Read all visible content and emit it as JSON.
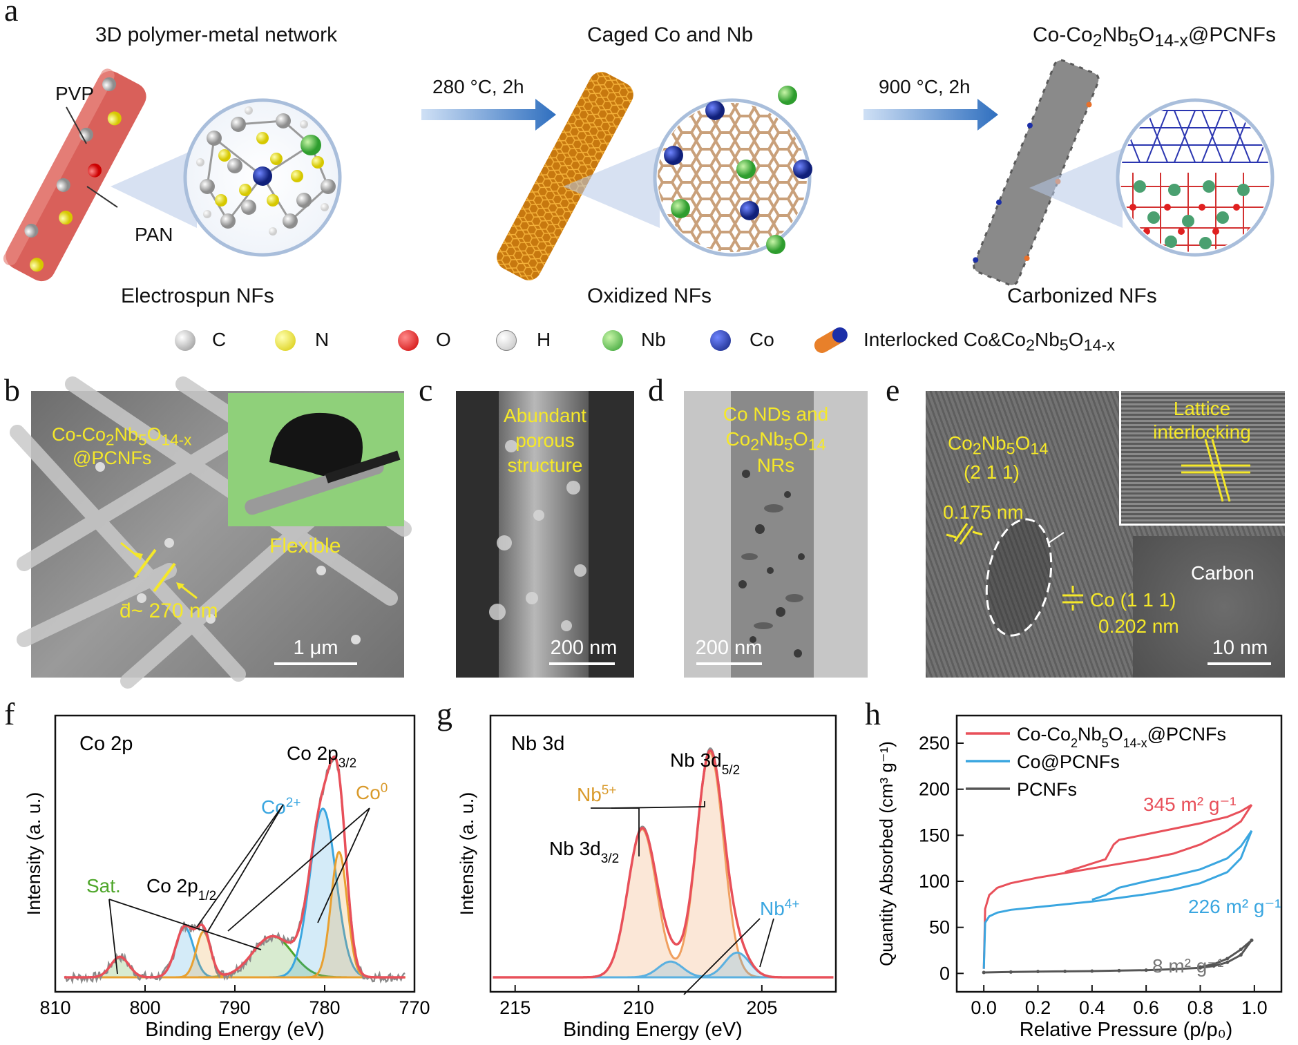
{
  "panel_labels": {
    "a": "a",
    "b": "b",
    "c": "c",
    "d": "d",
    "e": "e",
    "f": "f",
    "g": "g",
    "h": "h"
  },
  "panel_a": {
    "titles": [
      "3D polymer-metal network",
      "Caged Co and Nb",
      "Co-Co₂Nb₅O₁₄₋ₓ@PCNFs"
    ],
    "pvp": "PVP",
    "pan": "PAN",
    "step1": "280 °C, 2h",
    "step2": "900 °C, 2h",
    "captions": [
      "Electrospun NFs",
      "Oxidized NFs",
      "Carbonized NFs"
    ],
    "legend": [
      {
        "symbol": "C",
        "color": "#bdbdbd"
      },
      {
        "symbol": "N",
        "color": "#f2e600"
      },
      {
        "symbol": "O",
        "color": "#e31a1a"
      },
      {
        "symbol": "H",
        "color": "#f4f4f4"
      },
      {
        "symbol": "Nb",
        "color": "#3fbf3f"
      },
      {
        "symbol": "Co",
        "color": "#1c2fa8"
      }
    ],
    "legend_interlock": "Interlocked Co&Co₂Nb₅O₁₄₋ₓ"
  },
  "panel_b": {
    "label_line1": "Co-Co₂Nb₅O₁₄₋ₓ",
    "label_line2": "@PCNFs",
    "flexible": "Flexible",
    "diameter": "d̄~ 270 nm",
    "scale": "1 μm"
  },
  "panel_c": {
    "text": [
      "Abundant",
      "porous",
      "structure"
    ],
    "scale": "200 nm"
  },
  "panel_d": {
    "text": [
      "Co NDs and",
      "Co₂Nb₅O₁₄",
      "NRs"
    ],
    "scale": "200 nm"
  },
  "panel_e": {
    "phase": "Co₂Nb₅O₁₄",
    "plane": "(2 1 1)",
    "d1": "0.175 nm",
    "inset": [
      "Lattice",
      "interlocking"
    ],
    "carbon": "Carbon",
    "co_plane": "Co (1 1 1)",
    "d2": "0.202 nm",
    "scale": "10 nm"
  },
  "chart_data": [
    {
      "panel": "f",
      "type": "line",
      "title": "Co 2p",
      "xlabel": "Binding Energy (eV)",
      "ylabel": "Intensity (a. u.)",
      "xlim": [
        810,
        770
      ],
      "xticks": [
        810,
        800,
        790,
        780,
        770
      ],
      "annotations": [
        "Co 2p₃/₂",
        "Co²⁺",
        "Co⁰",
        "Sat.",
        "Co 2p₁/₂"
      ],
      "peaks": [
        {
          "name": "Co²⁺",
          "center": [
            780.2,
            795.6
          ]
        },
        {
          "name": "Co⁰",
          "center": [
            778.4,
            793.5
          ]
        },
        {
          "name": "Sat.",
          "center": [
            785.8,
            802.8
          ]
        }
      ],
      "series_colors": {
        "raw": "#8a8a8a",
        "envelope": "#e8505a",
        "co2": "#3aa6e0",
        "co0": "#e8a030",
        "sat": "#4ea62a"
      }
    },
    {
      "panel": "g",
      "type": "line",
      "title": "Nb 3d",
      "xlabel": "Binding Energy (eV)",
      "ylabel": "Intensity (a. u.)",
      "xlim": [
        216,
        202
      ],
      "xticks": [
        215,
        210,
        205
      ],
      "annotations": [
        "Nb 3d₅/₂",
        "Nb⁵⁺",
        "Nb 3d₃/₂",
        "Nb⁴⁺"
      ],
      "peaks": [
        {
          "name": "Nb⁵⁺",
          "center": [
            207.1,
            209.8
          ]
        },
        {
          "name": "Nb⁴⁺",
          "center": [
            206.0,
            208.7
          ]
        }
      ],
      "series_colors": {
        "raw": "#8a8a8a",
        "envelope": "#e8505a",
        "nb5": "#f0a060",
        "nb4": "#5ab0e0"
      }
    },
    {
      "panel": "h",
      "type": "line",
      "xlabel": "Relative Pressure (p/p₀)",
      "ylabel": "Quantity Absorbed (cm³ g⁻¹)",
      "xlim": [
        -0.1,
        1.1
      ],
      "ylim": [
        -20,
        280
      ],
      "xticks": [
        0.0,
        0.2,
        0.4,
        0.6,
        0.8,
        1.0
      ],
      "xtick_labels": [
        "0.0",
        "0.2",
        "0.4",
        "0.6",
        "0.8",
        "1.0"
      ],
      "yticks": [
        0,
        50,
        100,
        150,
        200,
        250
      ],
      "series": [
        {
          "name": "Co-Co₂Nb₅O₁₄₋ₓ@PCNFs",
          "color": "#e8505a",
          "area": "345 m² g⁻¹",
          "adsorption": [
            [
              0.0,
              5
            ],
            [
              0.005,
              70
            ],
            [
              0.02,
              85
            ],
            [
              0.05,
              93
            ],
            [
              0.1,
              98
            ],
            [
              0.2,
              104
            ],
            [
              0.3,
              109
            ],
            [
              0.4,
              114
            ],
            [
              0.5,
              119
            ],
            [
              0.6,
              124
            ],
            [
              0.7,
              130
            ],
            [
              0.8,
              140
            ],
            [
              0.9,
              155
            ],
            [
              0.95,
              165
            ],
            [
              0.99,
              183
            ]
          ],
          "desorption": [
            [
              0.99,
              183
            ],
            [
              0.95,
              176
            ],
            [
              0.9,
              170
            ],
            [
              0.8,
              163
            ],
            [
              0.7,
              157
            ],
            [
              0.6,
              151
            ],
            [
              0.5,
              145
            ],
            [
              0.48,
              140
            ],
            [
              0.45,
              124
            ],
            [
              0.3,
              110
            ]
          ]
        },
        {
          "name": "Co@PCNFs",
          "color": "#3aa6e0",
          "area": "226 m² g⁻¹",
          "adsorption": [
            [
              0.0,
              5
            ],
            [
              0.005,
              55
            ],
            [
              0.02,
              62
            ],
            [
              0.05,
              66
            ],
            [
              0.1,
              69
            ],
            [
              0.2,
              72
            ],
            [
              0.3,
              75
            ],
            [
              0.4,
              78
            ],
            [
              0.5,
              82
            ],
            [
              0.6,
              86
            ],
            [
              0.7,
              91
            ],
            [
              0.8,
              98
            ],
            [
              0.9,
              110
            ],
            [
              0.95,
              125
            ],
            [
              0.99,
              155
            ]
          ],
          "desorption": [
            [
              0.99,
              155
            ],
            [
              0.95,
              138
            ],
            [
              0.9,
              125
            ],
            [
              0.8,
              113
            ],
            [
              0.7,
              106
            ],
            [
              0.6,
              100
            ],
            [
              0.5,
              93
            ],
            [
              0.45,
              85
            ],
            [
              0.4,
              80
            ]
          ]
        },
        {
          "name": "PCNFs",
          "color": "#555555",
          "area": "8 m² g⁻¹",
          "adsorption": [
            [
              0.0,
              1
            ],
            [
              0.1,
              1.5
            ],
            [
              0.2,
              2
            ],
            [
              0.3,
              2.2
            ],
            [
              0.4,
              2.5
            ],
            [
              0.5,
              3
            ],
            [
              0.6,
              3.5
            ],
            [
              0.7,
              4.5
            ],
            [
              0.8,
              6
            ],
            [
              0.85,
              8
            ],
            [
              0.9,
              12
            ],
            [
              0.95,
              20
            ],
            [
              0.99,
              36
            ]
          ],
          "desorption": [
            [
              0.99,
              36
            ],
            [
              0.95,
              26
            ],
            [
              0.9,
              16
            ],
            [
              0.85,
              10
            ],
            [
              0.8,
              7
            ]
          ]
        }
      ]
    }
  ]
}
